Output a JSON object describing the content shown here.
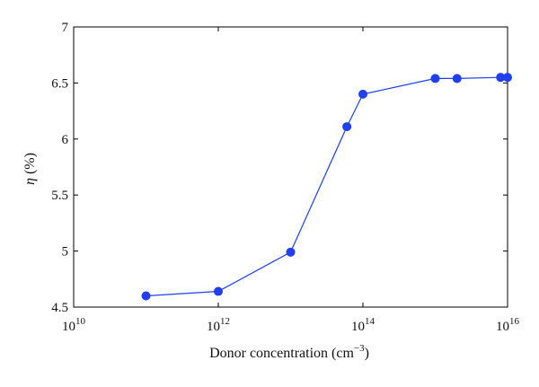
{
  "chart_data": {
    "type": "line",
    "xlabel": "Donor concentration (cm",
    "xlabel_sup": "−3",
    "xlabel_end": ")",
    "ylabel_symbol": "η",
    "ylabel_unit": " (%)",
    "x_scale": "log",
    "xlim": [
      10000000000.0,
      1e+16
    ],
    "ylim": [
      4.5,
      7
    ],
    "x_ticks": [
      {
        "base": "10",
        "exp": "10",
        "value": 10000000000.0
      },
      {
        "base": "10",
        "exp": "12",
        "value": 1000000000000.0
      },
      {
        "base": "10",
        "exp": "14",
        "value": 100000000000000.0
      },
      {
        "base": "10",
        "exp": "16",
        "value": 1e+16
      }
    ],
    "y_ticks": [
      {
        "label": "4.5",
        "value": 4.5
      },
      {
        "label": "5",
        "value": 5
      },
      {
        "label": "5.5",
        "value": 5.5
      },
      {
        "label": "6",
        "value": 6
      },
      {
        "label": "6.5",
        "value": 6.5
      },
      {
        "label": "7",
        "value": 7
      }
    ],
    "grid": false,
    "series": [
      {
        "color": "#1f3ff0",
        "marker": "circle",
        "x": [
          100000000000.0,
          1000000000000.0,
          10000000000000.0,
          60000000000000.0,
          100000000000000.0,
          1000000000000000.0,
          2000000000000000.0,
          8000000000000000.0,
          1e+16
        ],
        "y": [
          4.6,
          4.64,
          4.99,
          6.11,
          6.4,
          6.54,
          6.54,
          6.55,
          6.55
        ]
      }
    ]
  }
}
